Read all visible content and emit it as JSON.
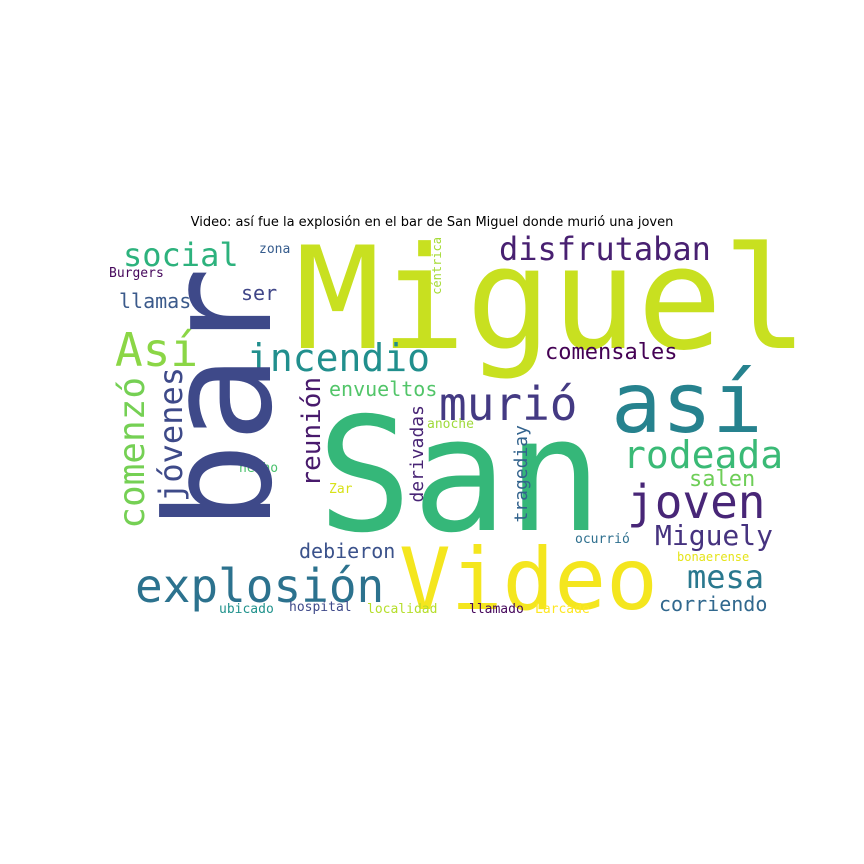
{
  "title": "Video: así fue la explosión en el bar de San Miguel donde murió una joven",
  "words": [
    {
      "text": "San",
      "color": "#35b779"
    },
    {
      "text": "Miguel",
      "color": "#c8e020"
    },
    {
      "text": "bar",
      "color": "#3e4989"
    },
    {
      "text": "Video",
      "color": "#f4e61e"
    },
    {
      "text": "así",
      "color": "#26828e"
    },
    {
      "text": "explosión",
      "color": "#2c728e"
    },
    {
      "text": "joven",
      "color": "#482677"
    },
    {
      "text": "murió",
      "color": "#443a83"
    },
    {
      "text": "rodeada",
      "color": "#3aba76"
    },
    {
      "text": "incendio",
      "color": "#218f8d"
    },
    {
      "text": "Así",
      "color": "#8bd646"
    },
    {
      "text": "comenzó",
      "color": "#75d054"
    },
    {
      "text": "jóvenes",
      "color": "#3e4a89"
    },
    {
      "text": "disfrutaban",
      "color": "#482071"
    },
    {
      "text": "social",
      "color": "#2db27d"
    },
    {
      "text": "mesa",
      "color": "#2a788e"
    },
    {
      "text": "Miguely",
      "color": "#46337f"
    },
    {
      "text": "comensales",
      "color": "#440154"
    },
    {
      "text": "reunión",
      "color": "#481a6c"
    },
    {
      "text": "salen",
      "color": "#6ece58"
    },
    {
      "text": "corriendo",
      "color": "#31688e"
    },
    {
      "text": "debieron",
      "color": "#3b528b"
    },
    {
      "text": "envueltos",
      "color": "#52c569"
    },
    {
      "text": "llamas",
      "color": "#3b5a8b"
    },
    {
      "text": "ser",
      "color": "#404688"
    },
    {
      "text": "derivadas",
      "color": "#482475"
    },
    {
      "text": "tragediay",
      "color": "#33638d"
    },
    {
      "text": "zona",
      "color": "#365c8d"
    },
    {
      "text": "Burgers",
      "color": "#46085c"
    },
    {
      "text": "céntrica",
      "color": "#a5db36"
    },
    {
      "text": "anoche",
      "color": "#9fda3a"
    },
    {
      "text": "hecho",
      "color": "#4ac16d"
    },
    {
      "text": "Zar",
      "color": "#d8e219"
    },
    {
      "text": "ocurrió",
      "color": "#2e6f8e"
    },
    {
      "text": "bonaerense",
      "color": "#e5e419"
    },
    {
      "text": "ubicado",
      "color": "#20928c"
    },
    {
      "text": "hospital",
      "color": "#3e4989"
    },
    {
      "text": "localidad",
      "color": "#b5de2b"
    },
    {
      "text": "llamado",
      "color": "#46085c"
    },
    {
      "text": "Larcade",
      "color": "#fde725"
    }
  ]
}
